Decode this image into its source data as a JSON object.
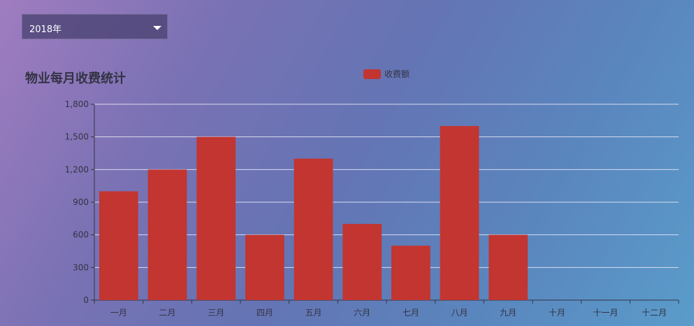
{
  "year_select": {
    "value": "2018年"
  },
  "chart_data": {
    "type": "bar",
    "title": "物业每月收费统计",
    "categories": [
      "一月",
      "二月",
      "三月",
      "四月",
      "五月",
      "六月",
      "七月",
      "八月",
      "九月",
      "十月",
      "十一月",
      "十二月"
    ],
    "series": [
      {
        "name": "收费额",
        "values": [
          1000,
          1200,
          1500,
          600,
          1300,
          700,
          500,
          1600,
          600,
          null,
          null,
          null
        ]
      }
    ],
    "ylim": [
      0,
      1800
    ],
    "yticks": [
      "0",
      "300",
      "600",
      "900",
      "1,200",
      "1,500",
      "1,800"
    ],
    "grid": true,
    "legend_position": "top-center"
  },
  "colors": {
    "bar": "#c23531",
    "axis": "#333344",
    "grid": "#d8dcef"
  }
}
